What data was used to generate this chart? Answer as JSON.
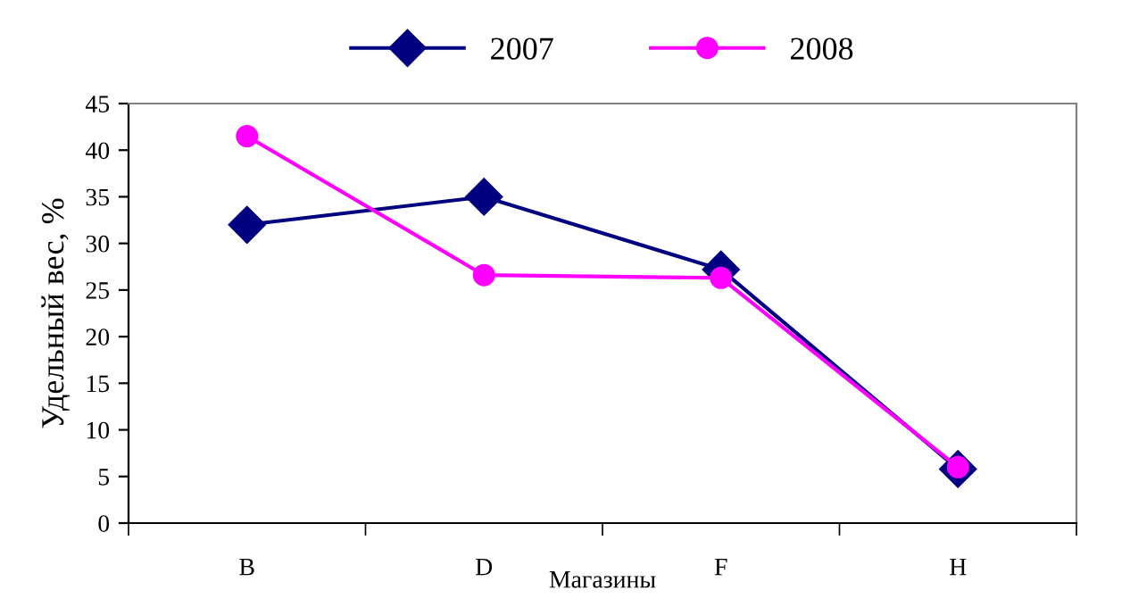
{
  "chart_data": {
    "type": "line",
    "xlabel": "Магазины",
    "ylabel": "Удельный вес, %",
    "categories": [
      "B",
      "D",
      "F",
      "H"
    ],
    "series": [
      {
        "name": "2007",
        "color": "#000080",
        "values": [
          32,
          35,
          27.2,
          5.8
        ],
        "marker": "diamond"
      },
      {
        "name": "2008",
        "color": "#ff00ff",
        "values": [
          41.5,
          26.6,
          26.3,
          6.0
        ],
        "marker": "circle"
      }
    ],
    "ylim": [
      0,
      45
    ],
    "yticks": [
      0,
      5,
      10,
      15,
      20,
      25,
      30,
      35,
      40,
      45
    ],
    "grid": false,
    "legend": "top",
    "line_style": "solid"
  }
}
